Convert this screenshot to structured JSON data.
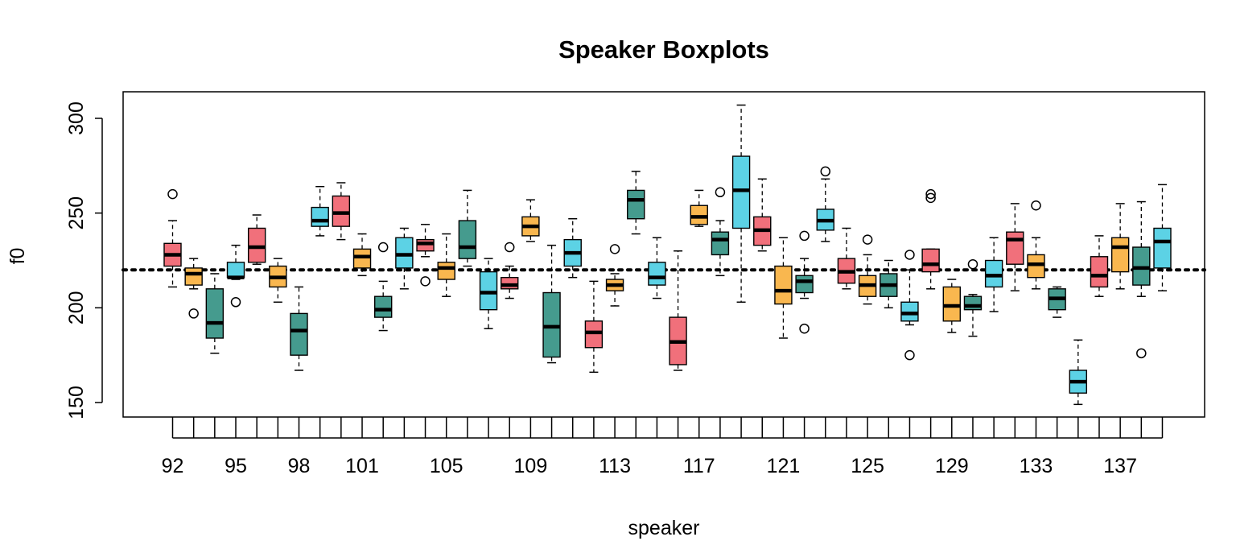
{
  "chart_data": {
    "type": "boxplot",
    "title": "Speaker Boxplots",
    "xlabel": "speaker",
    "ylabel": "f0",
    "ylim": [
      143,
      313
    ],
    "y_ticks": [
      150,
      200,
      250,
      300
    ],
    "grid": false,
    "reference_line": {
      "y": 220,
      "style": "dotted"
    },
    "palette": {
      "pink": "#F1707B",
      "orange": "#F9B74F",
      "teal": "#459B8E",
      "cyan": "#5CD2E5"
    },
    "categories": [
      92,
      93,
      94,
      95,
      96,
      97,
      98,
      99,
      100,
      101,
      102,
      103,
      104,
      105,
      106,
      107,
      108,
      109,
      110,
      111,
      112,
      113,
      114,
      115,
      116,
      117,
      118,
      119,
      120,
      121,
      122,
      123,
      124,
      125,
      126,
      127,
      128,
      129,
      130,
      131,
      132,
      133,
      134,
      135,
      136,
      137,
      138,
      139
    ],
    "x_tick_labels": [
      "92",
      "95",
      "98",
      "101",
      "105",
      "109",
      "113",
      "117",
      "121",
      "125",
      "129",
      "133",
      "137"
    ],
    "boxes": [
      {
        "speaker": 92,
        "color": "pink",
        "whisker_low": 211,
        "q1": 222,
        "median": 228,
        "q3": 234,
        "whisker_high": 246,
        "outliers": [
          260
        ]
      },
      {
        "speaker": 93,
        "color": "orange",
        "whisker_low": 210,
        "q1": 212,
        "median": 218,
        "q3": 221,
        "whisker_high": 226,
        "outliers": [
          197
        ]
      },
      {
        "speaker": 94,
        "color": "teal",
        "whisker_low": 176,
        "q1": 184,
        "median": 192,
        "q3": 210,
        "whisker_high": 218,
        "outliers": []
      },
      {
        "speaker": 95,
        "color": "cyan",
        "whisker_low": 215,
        "q1": 216,
        "median": 216,
        "q3": 224,
        "whisker_high": 233,
        "outliers": [
          203
        ]
      },
      {
        "speaker": 96,
        "color": "pink",
        "whisker_low": 223,
        "q1": 224,
        "median": 232,
        "q3": 242,
        "whisker_high": 249,
        "outliers": []
      },
      {
        "speaker": 97,
        "color": "orange",
        "whisker_low": 203,
        "q1": 211,
        "median": 216,
        "q3": 222,
        "whisker_high": 226,
        "outliers": []
      },
      {
        "speaker": 98,
        "color": "teal",
        "whisker_low": 167,
        "q1": 175,
        "median": 188,
        "q3": 197,
        "whisker_high": 211,
        "outliers": []
      },
      {
        "speaker": 99,
        "color": "cyan",
        "whisker_low": 238,
        "q1": 243,
        "median": 246,
        "q3": 253,
        "whisker_high": 264,
        "outliers": []
      },
      {
        "speaker": 100,
        "color": "pink",
        "whisker_low": 236,
        "q1": 243,
        "median": 250,
        "q3": 259,
        "whisker_high": 266,
        "outliers": []
      },
      {
        "speaker": 101,
        "color": "orange",
        "whisker_low": 217,
        "q1": 221,
        "median": 227,
        "q3": 231,
        "whisker_high": 239,
        "outliers": []
      },
      {
        "speaker": 102,
        "color": "teal",
        "whisker_low": 188,
        "q1": 195,
        "median": 199,
        "q3": 206,
        "whisker_high": 214,
        "outliers": [
          232
        ]
      },
      {
        "speaker": 103,
        "color": "cyan",
        "whisker_low": 210,
        "q1": 221,
        "median": 228,
        "q3": 237,
        "whisker_high": 242,
        "outliers": []
      },
      {
        "speaker": 104,
        "color": "pink",
        "whisker_low": 227,
        "q1": 230,
        "median": 234,
        "q3": 236,
        "whisker_high": 244,
        "outliers": [
          214
        ]
      },
      {
        "speaker": 105,
        "color": "orange",
        "whisker_low": 206,
        "q1": 215,
        "median": 221,
        "q3": 224,
        "whisker_high": 239,
        "outliers": []
      },
      {
        "speaker": 106,
        "color": "teal",
        "whisker_low": 222,
        "q1": 226,
        "median": 232,
        "q3": 246,
        "whisker_high": 262,
        "outliers": []
      },
      {
        "speaker": 107,
        "color": "cyan",
        "whisker_low": 189,
        "q1": 199,
        "median": 208,
        "q3": 219,
        "whisker_high": 226,
        "outliers": []
      },
      {
        "speaker": 108,
        "color": "pink",
        "whisker_low": 205,
        "q1": 210,
        "median": 212,
        "q3": 216,
        "whisker_high": 222,
        "outliers": [
          232
        ]
      },
      {
        "speaker": 109,
        "color": "orange",
        "whisker_low": 235,
        "q1": 238,
        "median": 243,
        "q3": 248,
        "whisker_high": 257,
        "outliers": []
      },
      {
        "speaker": 110,
        "color": "teal",
        "whisker_low": 171,
        "q1": 174,
        "median": 190,
        "q3": 208,
        "whisker_high": 233,
        "outliers": []
      },
      {
        "speaker": 111,
        "color": "cyan",
        "whisker_low": 216,
        "q1": 222,
        "median": 229,
        "q3": 236,
        "whisker_high": 247,
        "outliers": []
      },
      {
        "speaker": 112,
        "color": "pink",
        "whisker_low": 166,
        "q1": 179,
        "median": 187,
        "q3": 193,
        "whisker_high": 214,
        "outliers": []
      },
      {
        "speaker": 113,
        "color": "orange",
        "whisker_low": 201,
        "q1": 209,
        "median": 212,
        "q3": 215,
        "whisker_high": 218,
        "outliers": [
          231
        ]
      },
      {
        "speaker": 114,
        "color": "teal",
        "whisker_low": 239,
        "q1": 247,
        "median": 257,
        "q3": 262,
        "whisker_high": 272,
        "outliers": []
      },
      {
        "speaker": 115,
        "color": "cyan",
        "whisker_low": 205,
        "q1": 212,
        "median": 216,
        "q3": 224,
        "whisker_high": 237,
        "outliers": []
      },
      {
        "speaker": 116,
        "color": "pink",
        "whisker_low": 167,
        "q1": 170,
        "median": 182,
        "q3": 195,
        "whisker_high": 230,
        "outliers": []
      },
      {
        "speaker": 117,
        "color": "orange",
        "whisker_low": 243,
        "q1": 244,
        "median": 248,
        "q3": 254,
        "whisker_high": 262,
        "outliers": []
      },
      {
        "speaker": 118,
        "color": "teal",
        "whisker_low": 217,
        "q1": 228,
        "median": 236,
        "q3": 240,
        "whisker_high": 246,
        "outliers": [
          261
        ]
      },
      {
        "speaker": 119,
        "color": "cyan",
        "whisker_low": 203,
        "q1": 242,
        "median": 262,
        "q3": 280,
        "whisker_high": 307,
        "outliers": []
      },
      {
        "speaker": 120,
        "color": "pink",
        "whisker_low": 230,
        "q1": 233,
        "median": 241,
        "q3": 248,
        "whisker_high": 268,
        "outliers": []
      },
      {
        "speaker": 121,
        "color": "orange",
        "whisker_low": 184,
        "q1": 202,
        "median": 209,
        "q3": 222,
        "whisker_high": 237,
        "outliers": []
      },
      {
        "speaker": 122,
        "color": "teal",
        "whisker_low": 205,
        "q1": 208,
        "median": 214,
        "q3": 217,
        "whisker_high": 226,
        "outliers": [
          189,
          238
        ]
      },
      {
        "speaker": 123,
        "color": "cyan",
        "whisker_low": 235,
        "q1": 241,
        "median": 246,
        "q3": 252,
        "whisker_high": 268,
        "outliers": [
          272
        ]
      },
      {
        "speaker": 124,
        "color": "pink",
        "whisker_low": 210,
        "q1": 213,
        "median": 219,
        "q3": 226,
        "whisker_high": 242,
        "outliers": []
      },
      {
        "speaker": 125,
        "color": "orange",
        "whisker_low": 202,
        "q1": 206,
        "median": 212,
        "q3": 217,
        "whisker_high": 228,
        "outliers": [
          236
        ]
      },
      {
        "speaker": 126,
        "color": "teal",
        "whisker_low": 200,
        "q1": 206,
        "median": 212,
        "q3": 218,
        "whisker_high": 225,
        "outliers": []
      },
      {
        "speaker": 127,
        "color": "cyan",
        "whisker_low": 191,
        "q1": 193,
        "median": 197,
        "q3": 203,
        "whisker_high": 220,
        "outliers": [
          175,
          228
        ]
      },
      {
        "speaker": 128,
        "color": "pink",
        "whisker_low": 210,
        "q1": 219,
        "median": 223,
        "q3": 231,
        "whisker_high": 231,
        "outliers": [
          258,
          260
        ]
      },
      {
        "speaker": 129,
        "color": "orange",
        "whisker_low": 187,
        "q1": 193,
        "median": 201,
        "q3": 211,
        "whisker_high": 215,
        "outliers": []
      },
      {
        "speaker": 130,
        "color": "teal",
        "whisker_low": 185,
        "q1": 199,
        "median": 201,
        "q3": 206,
        "whisker_high": 207,
        "outliers": [
          223
        ]
      },
      {
        "speaker": 131,
        "color": "cyan",
        "whisker_low": 198,
        "q1": 211,
        "median": 217,
        "q3": 225,
        "whisker_high": 237,
        "outliers": []
      },
      {
        "speaker": 132,
        "color": "pink",
        "whisker_low": 209,
        "q1": 223,
        "median": 236,
        "q3": 240,
        "whisker_high": 255,
        "outliers": []
      },
      {
        "speaker": 133,
        "color": "orange",
        "whisker_low": 210,
        "q1": 216,
        "median": 223,
        "q3": 228,
        "whisker_high": 237,
        "outliers": [
          254
        ]
      },
      {
        "speaker": 134,
        "color": "teal",
        "whisker_low": 195,
        "q1": 199,
        "median": 205,
        "q3": 210,
        "whisker_high": 211,
        "outliers": []
      },
      {
        "speaker": 135,
        "color": "cyan",
        "whisker_low": 149,
        "q1": 155,
        "median": 161,
        "q3": 167,
        "whisker_high": 183,
        "outliers": []
      },
      {
        "speaker": 136,
        "color": "pink",
        "whisker_low": 206,
        "q1": 211,
        "median": 217,
        "q3": 227,
        "whisker_high": 238,
        "outliers": []
      },
      {
        "speaker": 137,
        "color": "orange",
        "whisker_low": 210,
        "q1": 219,
        "median": 232,
        "q3": 237,
        "whisker_high": 255,
        "outliers": []
      },
      {
        "speaker": 138,
        "color": "teal",
        "whisker_low": 206,
        "q1": 212,
        "median": 221,
        "q3": 232,
        "whisker_high": 256,
        "outliers": [
          176
        ]
      },
      {
        "speaker": 139,
        "color": "cyan",
        "whisker_low": 209,
        "q1": 221,
        "median": 235,
        "q3": 242,
        "whisker_high": 265,
        "outliers": []
      }
    ]
  }
}
